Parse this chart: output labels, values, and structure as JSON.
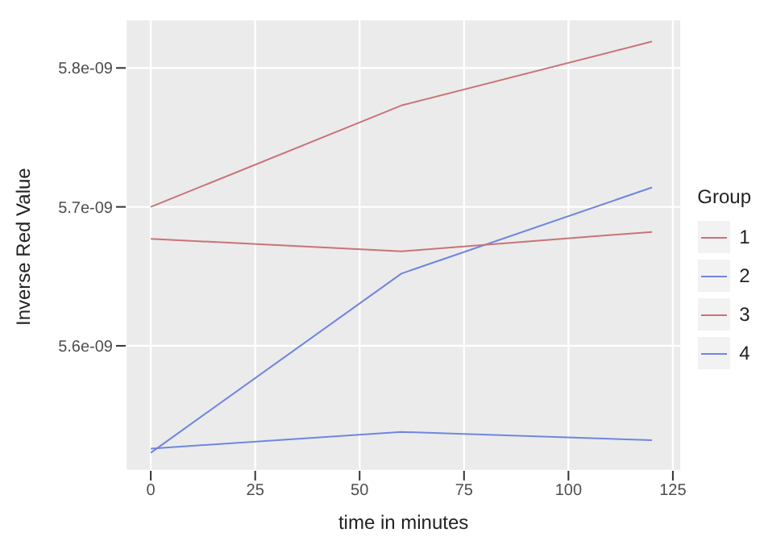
{
  "chart_data": {
    "type": "line",
    "xlabel": "time in minutes",
    "ylabel": "Inverse Red Value",
    "legend_title": "Group",
    "x": [
      0,
      60,
      120
    ],
    "series": [
      {
        "name": "1",
        "color": "#c97378",
        "values": [
          5.7e-09,
          5.773e-09,
          5.819e-09
        ]
      },
      {
        "name": "2",
        "color": "#6f86e0",
        "values": [
          5.523e-09,
          5.652e-09,
          5.714e-09
        ]
      },
      {
        "name": "3",
        "color": "#c97378",
        "values": [
          5.677e-09,
          5.668e-09,
          5.682e-09
        ]
      },
      {
        "name": "4",
        "color": "#6f86e0",
        "values": [
          5.526e-09,
          5.538e-09,
          5.532e-09
        ]
      }
    ],
    "xlim": [
      -6,
      127
    ],
    "xticks": [
      0,
      25,
      50,
      75,
      100,
      125
    ],
    "ylim": [
      5.51e-09,
      5.835e-09
    ],
    "yticks": [
      {
        "value": 5.6e-09,
        "label": "5.6e-09"
      },
      {
        "value": 5.7e-09,
        "label": "5.7e-09"
      },
      {
        "value": 5.8e-09,
        "label": "5.8e-09"
      }
    ],
    "grid": true,
    "legend": "right",
    "marker": "none",
    "line_style": "solid"
  }
}
